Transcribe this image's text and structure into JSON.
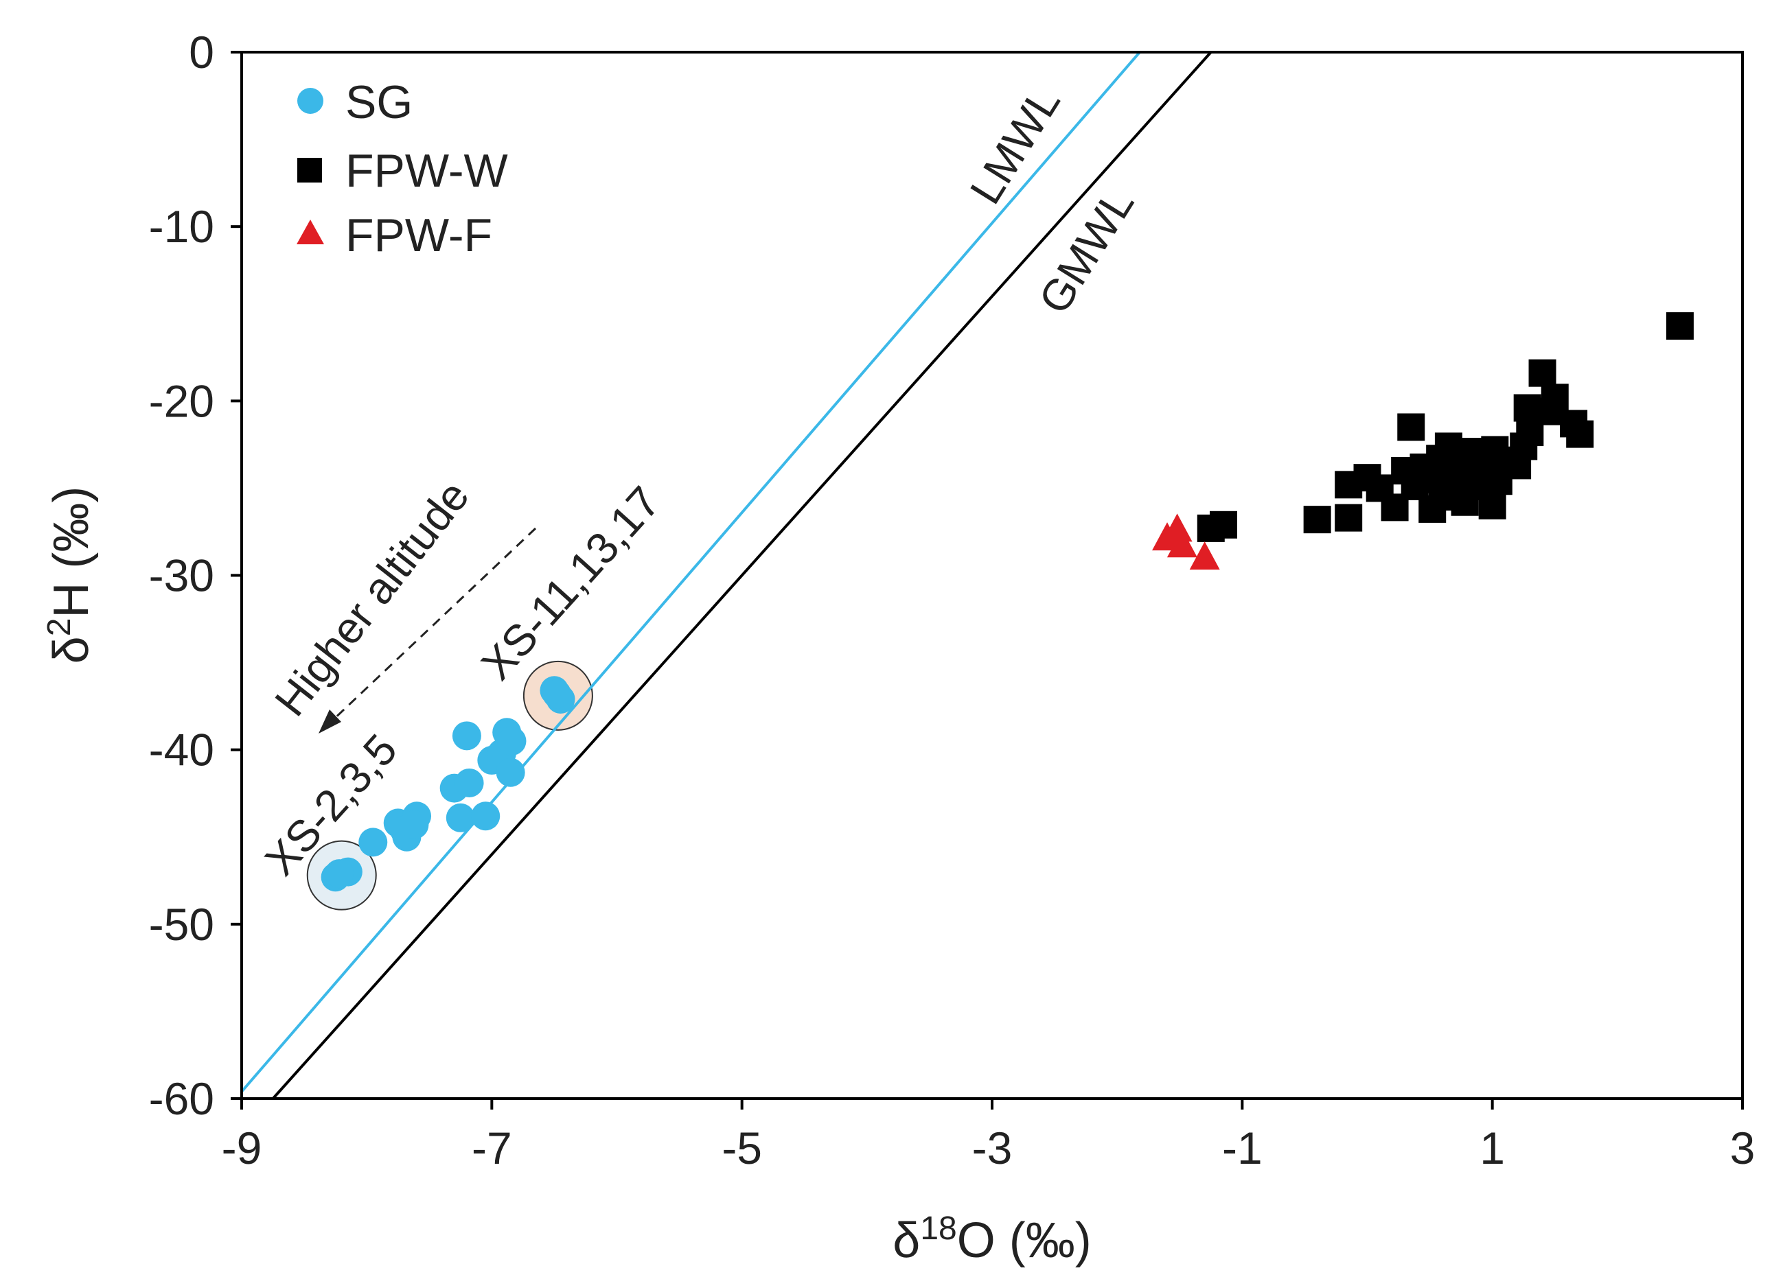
{
  "chart_data": {
    "type": "scatter",
    "title": "",
    "xlabel": {
      "prefix": "δ",
      "sup": "18",
      "suffix": "O (‰)"
    },
    "ylabel": {
      "prefix": "δ",
      "sup": "2",
      "suffix": "H (‰)"
    },
    "xlim": [
      -9,
      3
    ],
    "ylim": [
      -60,
      0
    ],
    "xticks": [
      -9,
      -7,
      -5,
      -3,
      -1,
      1,
      3
    ],
    "yticks": [
      0,
      -10,
      -20,
      -30,
      -40,
      -50,
      -60
    ],
    "grid": false,
    "legend_position": "top-left",
    "colors": {
      "sg": "#3BB8E8",
      "fpw_w": "#000000",
      "fpw_f": "#E01E24",
      "lmwl": "#3BB8E8",
      "gmwl": "#000000"
    },
    "series": [
      {
        "name": "SG",
        "marker": "circle",
        "color": "#3BB8E8",
        "points": [
          [
            -8.25,
            -47.3
          ],
          [
            -8.15,
            -47.0
          ],
          [
            -8.22,
            -47.1
          ],
          [
            -7.95,
            -45.3
          ],
          [
            -7.75,
            -44.2
          ],
          [
            -7.7,
            -44.6
          ],
          [
            -7.68,
            -45.0
          ],
          [
            -7.6,
            -43.8
          ],
          [
            -7.62,
            -44.3
          ],
          [
            -7.3,
            -42.2
          ],
          [
            -7.25,
            -43.9
          ],
          [
            -7.18,
            -41.9
          ],
          [
            -7.2,
            -39.2
          ],
          [
            -7.05,
            -43.8
          ],
          [
            -7.0,
            -40.6
          ],
          [
            -6.92,
            -40.2
          ],
          [
            -6.85,
            -41.3
          ],
          [
            -6.88,
            -39.0
          ],
          [
            -6.84,
            -39.5
          ],
          [
            -6.5,
            -36.6
          ],
          [
            -6.45,
            -37.1
          ],
          [
            -6.48,
            -36.8
          ]
        ]
      },
      {
        "name": "FPW-W",
        "marker": "square",
        "color": "#000000",
        "points": [
          [
            -1.25,
            -27.3
          ],
          [
            -1.15,
            -27.1
          ],
          [
            -0.4,
            -26.8
          ],
          [
            -0.15,
            -26.7
          ],
          [
            -0.15,
            -24.8
          ],
          [
            0.0,
            -24.4
          ],
          [
            0.1,
            -25.0
          ],
          [
            0.22,
            -26.1
          ],
          [
            0.3,
            -24.0
          ],
          [
            0.35,
            -21.5
          ],
          [
            0.38,
            -24.9
          ],
          [
            0.45,
            -23.8
          ],
          [
            0.52,
            -26.2
          ],
          [
            0.55,
            -24.5
          ],
          [
            0.58,
            -23.3
          ],
          [
            0.6,
            -25.1
          ],
          [
            0.65,
            -22.6
          ],
          [
            0.68,
            -25.5
          ],
          [
            0.72,
            -24.0
          ],
          [
            0.75,
            -23.2
          ],
          [
            0.78,
            -25.8
          ],
          [
            0.82,
            -24.4
          ],
          [
            0.85,
            -22.9
          ],
          [
            0.88,
            -24.9
          ],
          [
            0.92,
            -23.6
          ],
          [
            0.95,
            -24.2
          ],
          [
            1.0,
            -26.0
          ],
          [
            1.02,
            -22.8
          ],
          [
            1.05,
            -24.6
          ],
          [
            1.1,
            -23.4
          ],
          [
            1.2,
            -23.7
          ],
          [
            1.25,
            -22.6
          ],
          [
            1.28,
            -20.4
          ],
          [
            1.3,
            -21.8
          ],
          [
            1.4,
            -18.4
          ],
          [
            1.45,
            -20.6
          ],
          [
            1.5,
            -19.8
          ],
          [
            1.65,
            -21.3
          ],
          [
            1.7,
            -21.9
          ],
          [
            2.5,
            -15.7
          ]
        ]
      },
      {
        "name": "FPW-F",
        "marker": "triangle",
        "color": "#E01E24",
        "points": [
          [
            -1.6,
            -27.9
          ],
          [
            -1.52,
            -27.4
          ],
          [
            -1.48,
            -28.3
          ],
          [
            -1.3,
            -29.0
          ]
        ]
      }
    ],
    "lines": [
      {
        "name": "LMWL",
        "slope": 8.3,
        "intercept": 15.1,
        "color": "#3BB8E8"
      },
      {
        "name": "GMWL",
        "slope": 8.0,
        "intercept": 10.0,
        "color": "#000000"
      }
    ],
    "annotations": [
      {
        "text": "LMWL",
        "color": "#3BB8E8"
      },
      {
        "text": "GMWL",
        "color": "#000000"
      },
      {
        "text": "Higher altitude",
        "color": "#222222"
      },
      {
        "text": "XS-11,13,17",
        "color": "#222222",
        "highlight_center": [
          -6.47,
          -36.9
        ],
        "fill": "#F6DECE"
      },
      {
        "text": "XS-2,3,5",
        "color": "#222222",
        "highlight_center": [
          -8.2,
          -47.2
        ],
        "fill": "#E4EEF4"
      }
    ]
  }
}
